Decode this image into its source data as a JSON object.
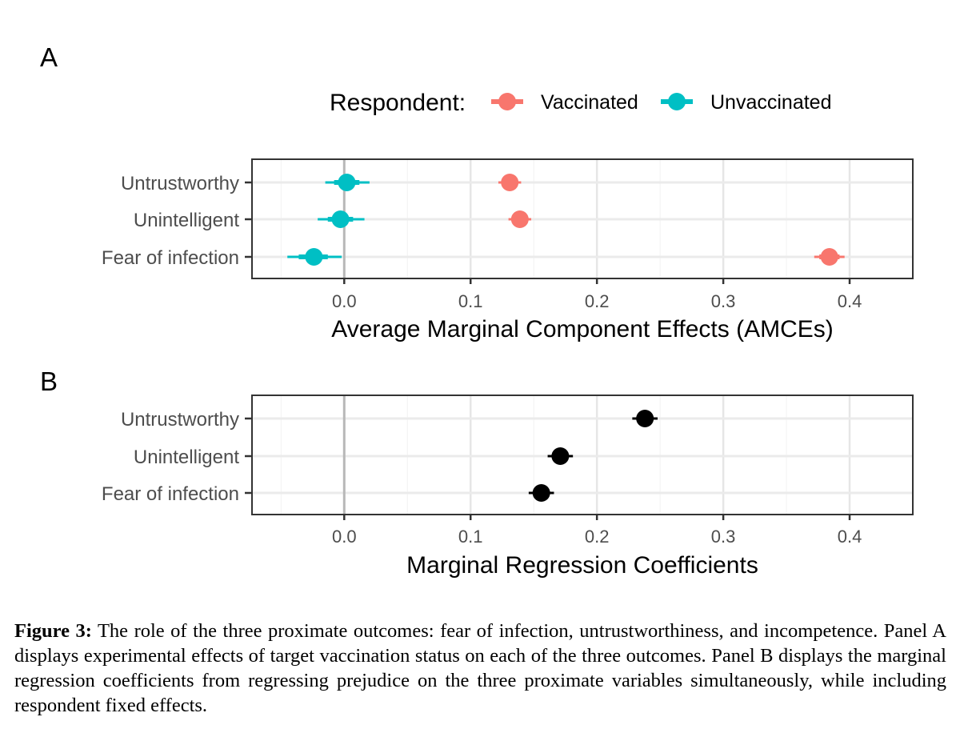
{
  "chart_data": [
    {
      "panel": "A",
      "type": "scatter",
      "subtype": "coefficient-plot",
      "xlabel": "Average Marginal Component Effects (AMCEs)",
      "xlim": [
        -0.073,
        0.45
      ],
      "xticks": [
        "0.0",
        "0.1",
        "0.2",
        "0.3",
        "0.4"
      ],
      "xtick_values": [
        0.0,
        0.1,
        0.2,
        0.3,
        0.4
      ],
      "categories": [
        "Untrustworthy",
        "Unintelligent",
        "Fear of infection"
      ],
      "legend": {
        "title": "Respondent:",
        "position": "top"
      },
      "grid": true,
      "reference_line": 0,
      "series": [
        {
          "name": "Vaccinated",
          "color": "#F8766D",
          "estimates": [
            0.131,
            0.139,
            0.384
          ],
          "ci_inner": [
            [
              0.125,
              0.137
            ],
            [
              0.133,
              0.145
            ],
            [
              0.376,
              0.392
            ]
          ],
          "ci_outer": [
            [
              0.122,
              0.14
            ],
            [
              0.13,
              0.148
            ],
            [
              0.372,
              0.396
            ]
          ]
        },
        {
          "name": "Unvaccinated",
          "color": "#00BFC4",
          "estimates": [
            0.002,
            -0.003,
            -0.024
          ],
          "ci_inner": [
            [
              -0.008,
              0.012
            ],
            [
              -0.013,
              0.007
            ],
            [
              -0.036,
              -0.013
            ]
          ],
          "ci_outer": [
            [
              -0.015,
              0.02
            ],
            [
              -0.021,
              0.016
            ],
            [
              -0.045,
              -0.002
            ]
          ]
        }
      ]
    },
    {
      "panel": "B",
      "type": "scatter",
      "subtype": "coefficient-plot",
      "xlabel": "Marginal Regression Coefficients",
      "xlim": [
        -0.073,
        0.45
      ],
      "xticks": [
        "0.0",
        "0.1",
        "0.2",
        "0.3",
        "0.4"
      ],
      "xtick_values": [
        0.0,
        0.1,
        0.2,
        0.3,
        0.4
      ],
      "categories": [
        "Untrustworthy",
        "Unintelligent",
        "Fear of infection"
      ],
      "grid": true,
      "reference_line": 0,
      "series": [
        {
          "name": "Coefficient",
          "color": "#000000",
          "estimates": [
            0.238,
            0.171,
            0.156
          ],
          "ci_inner": [
            [
              0.232,
              0.244
            ],
            [
              0.165,
              0.177
            ],
            [
              0.15,
              0.162
            ]
          ],
          "ci_outer": [
            [
              0.228,
              0.248
            ],
            [
              0.161,
              0.181
            ],
            [
              0.146,
              0.166
            ]
          ]
        }
      ]
    }
  ],
  "caption": {
    "label": "Figure 3:",
    "text": "The role of the three proximate outcomes: fear of infection, untrustworthiness, and incompetence. Panel A displays experimental effects of target vaccination status on each of the three outcomes. Panel B displays the marginal regression coefficients from regressing prejudice on the three proximate variables simultaneously, while including respondent fixed effects."
  }
}
